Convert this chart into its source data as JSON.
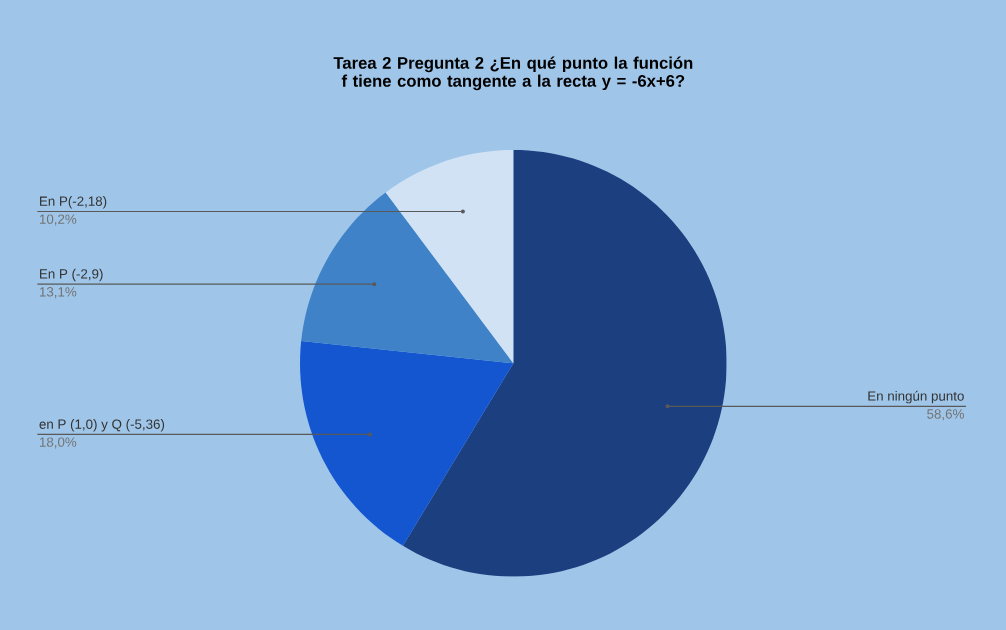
{
  "chart_data": {
    "type": "pie",
    "title": "Tarea 2 Pregunta 2 ¿En qué punto la función f tiene como tangente a la recta y = -6x+6?",
    "categories": [
      "En ningún punto",
      "en P (1,0) y Q (-5,36)",
      "En P (-2,9)",
      "En P(-2,18)"
    ],
    "values": [
      58.6,
      18.0,
      13.1,
      10.2
    ],
    "value_labels": [
      "58,6%",
      "18,0%",
      "13,1%",
      "10,2%"
    ],
    "colors": [
      "#1c3f7f",
      "#1455d0",
      "#3f82c8",
      "#d0e2f3"
    ]
  }
}
